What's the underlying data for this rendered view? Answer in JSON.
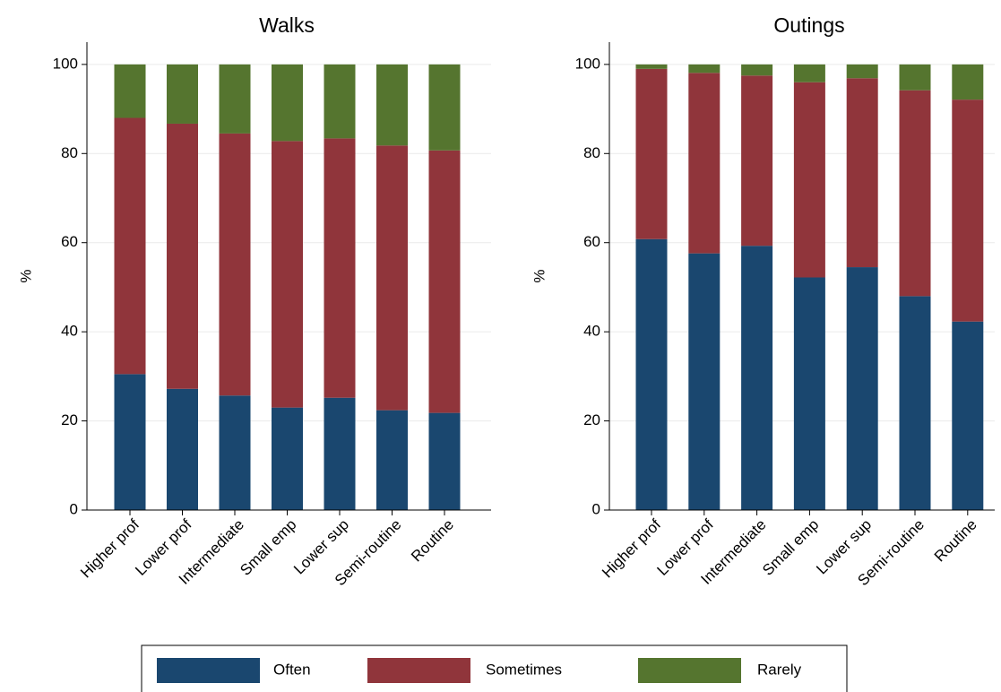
{
  "chart_data": [
    {
      "type": "stacked-bar",
      "title": "Walks",
      "y_label": "%",
      "categories": [
        "Higher prof",
        "Lower prof",
        "Intermediate",
        "Small emp",
        "Lower sup",
        "Semi-routine",
        "Routine"
      ],
      "series": [
        {
          "name": "Often",
          "color": "#1a476f",
          "values": [
            30.5,
            27.2,
            25.7,
            23,
            25.2,
            22.4,
            21.8
          ]
        },
        {
          "name": "Sometimes",
          "color": "#90353b",
          "values": [
            57.5,
            59.5,
            58.8,
            59.8,
            58.2,
            59.4,
            58.9
          ]
        },
        {
          "name": "Rarely",
          "color": "#55752f",
          "values": [
            12,
            13.3,
            15.5,
            17.2,
            16.6,
            18.2,
            19.3
          ]
        }
      ],
      "ylim": [
        0,
        105
      ],
      "yticks": [
        0,
        20,
        40,
        60,
        80,
        100
      ],
      "grid": true
    },
    {
      "type": "stacked-bar",
      "title": "Outings",
      "y_label": "%",
      "categories": [
        "Higher prof",
        "Lower prof",
        "Intermediate",
        "Small emp",
        "Lower sup",
        "Semi-routine",
        "Routine"
      ],
      "series": [
        {
          "color": "#1a476f",
          "values": [
            60.8,
            57.6,
            59.3,
            52.2,
            54.5,
            48,
            42.3
          ]
        },
        {
          "color": "#90353b",
          "values": [
            38.2,
            40.5,
            38.2,
            43.8,
            42.4,
            46.2,
            49.8
          ]
        },
        {
          "color": "#55752f",
          "values": [
            1,
            1.9,
            2.5,
            4,
            3.1,
            5.8,
            7.9
          ]
        }
      ],
      "ylim": [
        0,
        105
      ],
      "yticks": [
        0,
        20,
        40,
        60,
        80,
        100
      ],
      "grid": true
    }
  ]
}
